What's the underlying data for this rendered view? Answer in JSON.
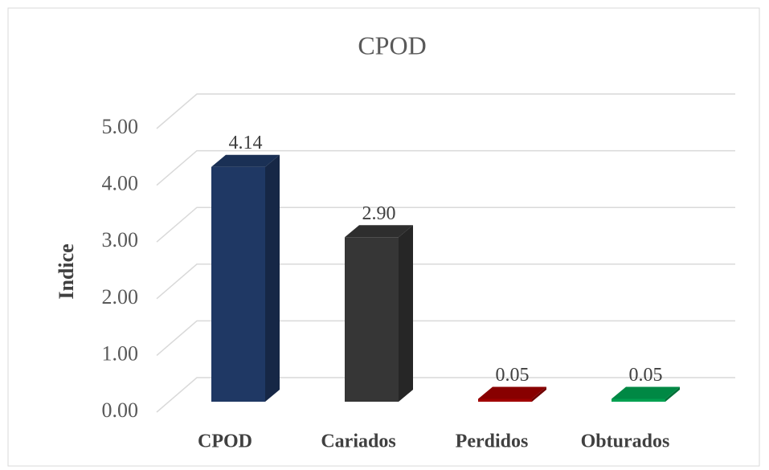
{
  "chart_data": {
    "type": "bar3d",
    "title": "CPOD",
    "y_label": "Indice",
    "categories": [
      "CPOD",
      "Cariados",
      "Perdidos",
      "Obturados"
    ],
    "values": [
      4.14,
      2.9,
      0.05,
      0.05
    ],
    "value_labels": [
      "4.14",
      "2.90",
      "0.05",
      "0.05"
    ],
    "colors": [
      "#1f3864",
      "#363636",
      "#a00000",
      "#00a050"
    ],
    "ylim": [
      0,
      5
    ],
    "yticks": [
      {
        "value": 0,
        "label": "0.00"
      },
      {
        "value": 1,
        "label": "1.00"
      },
      {
        "value": 2,
        "label": "2.00"
      },
      {
        "value": 3,
        "label": "3.00"
      },
      {
        "value": 4,
        "label": "4.00"
      },
      {
        "value": 5,
        "label": "5.00"
      }
    ],
    "grid": true
  }
}
